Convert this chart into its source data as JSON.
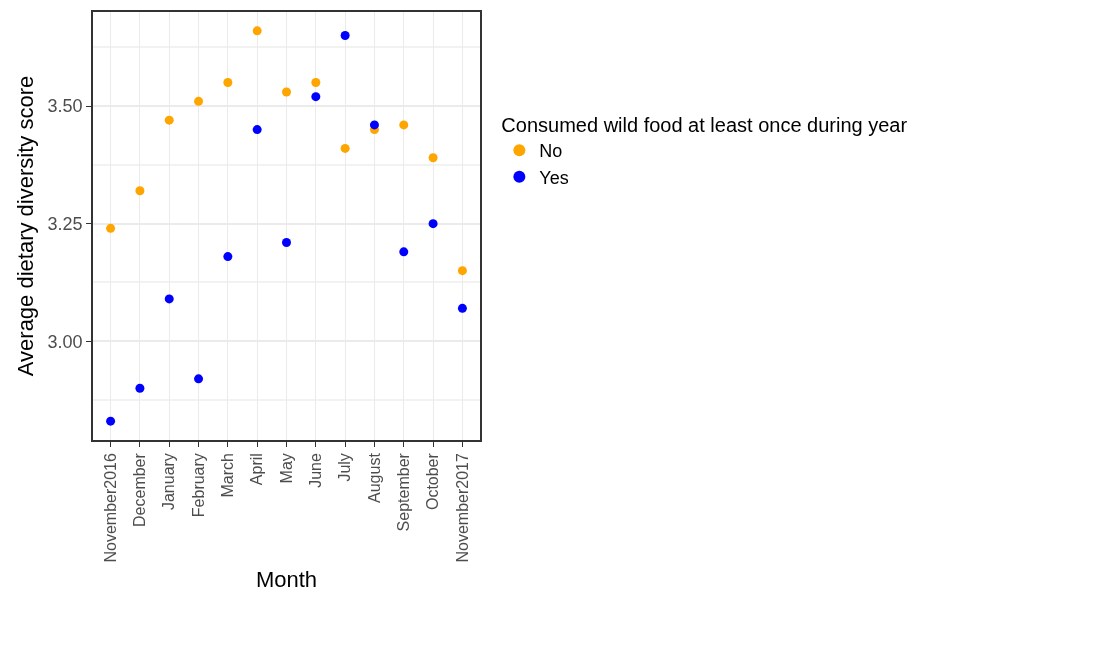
{
  "chart_data": {
    "type": "scatter",
    "xlabel": "Month",
    "ylabel": "Average dietary diversity score",
    "legend_title": "Consumed wild food at least once during year",
    "categories": [
      "November2016",
      "December",
      "January",
      "February",
      "March",
      "April",
      "May",
      "June",
      "July",
      "August",
      "September",
      "October",
      "November2017"
    ],
    "series": [
      {
        "name": "No",
        "color": "#ffa500",
        "values": [
          3.24,
          3.32,
          3.47,
          3.51,
          3.55,
          3.66,
          3.53,
          3.55,
          3.41,
          3.45,
          3.46,
          3.39,
          3.15
        ]
      },
      {
        "name": "Yes",
        "color": "#0000ff",
        "values": [
          2.83,
          2.9,
          3.09,
          2.92,
          3.18,
          3.45,
          3.21,
          3.52,
          3.65,
          3.46,
          3.19,
          3.25,
          3.07
        ]
      }
    ],
    "ylim": [
      2.79,
      3.7
    ],
    "yticks": [
      {
        "value": 3,
        "label": "3.00"
      },
      {
        "value": 3.25,
        "label": "3.25"
      },
      {
        "value": 3.5,
        "label": "3.50"
      }
    ],
    "grid": true,
    "legend": "right",
    "marker": "circle"
  }
}
